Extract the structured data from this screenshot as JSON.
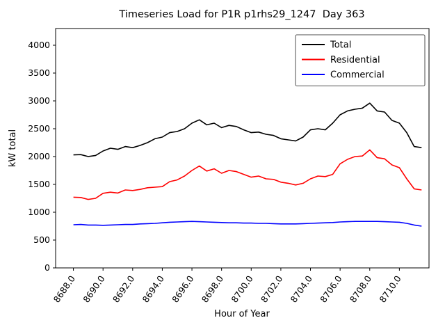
{
  "chart_data": {
    "type": "line",
    "title": "Timeseries Load for P1R p1rhs29_1247  Day 363",
    "xlabel": "Hour of Year",
    "ylabel": "kW total",
    "xlim": [
      8686.8,
      8712.0
    ],
    "ylim": [
      0,
      4300
    ],
    "grid": false,
    "legend_position": "upper right",
    "yticks": [
      0,
      500,
      1000,
      1500,
      2000,
      2500,
      3000,
      3500,
      4000
    ],
    "xticks": [
      8688,
      8690,
      8692,
      8694,
      8696,
      8698,
      8700,
      8702,
      8704,
      8706,
      8708,
      8710
    ],
    "xtick_labels": [
      "8688.0",
      "8690.0",
      "8692.0",
      "8694.0",
      "8696.0",
      "8698.0",
      "8700.0",
      "8702.0",
      "8704.0",
      "8706.0",
      "8708.0",
      "8710.0"
    ],
    "x": [
      8688.0,
      8688.5,
      8689.0,
      8689.5,
      8690.0,
      8690.5,
      8691.0,
      8691.5,
      8692.0,
      8692.5,
      8693.0,
      8693.5,
      8694.0,
      8694.5,
      8695.0,
      8695.5,
      8696.0,
      8696.5,
      8697.0,
      8697.5,
      8698.0,
      8698.5,
      8699.0,
      8699.5,
      8700.0,
      8700.5,
      8701.0,
      8701.5,
      8702.0,
      8702.5,
      8703.0,
      8703.5,
      8704.0,
      8704.5,
      8705.0,
      8705.5,
      8706.0,
      8706.5,
      8707.0,
      8707.5,
      8708.0,
      8708.5,
      8709.0,
      8709.5,
      8710.0,
      8710.5,
      8711.0,
      8711.5
    ],
    "series": [
      {
        "name": "Total",
        "color": "#000000",
        "values": [
          2030,
          2035,
          2000,
          2020,
          2100,
          2150,
          2130,
          2180,
          2160,
          2200,
          2250,
          2320,
          2350,
          2430,
          2450,
          2500,
          2600,
          2660,
          2570,
          2600,
          2520,
          2560,
          2540,
          2480,
          2430,
          2440,
          2400,
          2380,
          2320,
          2300,
          2280,
          2350,
          2480,
          2500,
          2480,
          2600,
          2750,
          2820,
          2850,
          2870,
          2960,
          2820,
          2800,
          2650,
          2600,
          2430,
          2180,
          2160
        ]
      },
      {
        "name": "Residential",
        "color": "#ff0000",
        "values": [
          1270,
          1265,
          1230,
          1250,
          1340,
          1360,
          1345,
          1400,
          1390,
          1410,
          1440,
          1450,
          1460,
          1550,
          1580,
          1650,
          1750,
          1830,
          1740,
          1780,
          1700,
          1750,
          1730,
          1680,
          1630,
          1650,
          1600,
          1590,
          1540,
          1520,
          1490,
          1520,
          1600,
          1650,
          1640,
          1680,
          1870,
          1950,
          2000,
          2010,
          2120,
          1980,
          1960,
          1850,
          1800,
          1600,
          1420,
          1400
        ]
      },
      {
        "name": "Commercial",
        "color": "#0000ff",
        "values": [
          775,
          780,
          770,
          770,
          765,
          770,
          775,
          780,
          780,
          790,
          795,
          800,
          810,
          820,
          825,
          830,
          835,
          830,
          825,
          820,
          815,
          810,
          810,
          805,
          805,
          800,
          800,
          795,
          790,
          790,
          790,
          795,
          800,
          805,
          810,
          815,
          825,
          830,
          835,
          835,
          835,
          835,
          830,
          825,
          820,
          800,
          770,
          750
        ]
      }
    ]
  }
}
